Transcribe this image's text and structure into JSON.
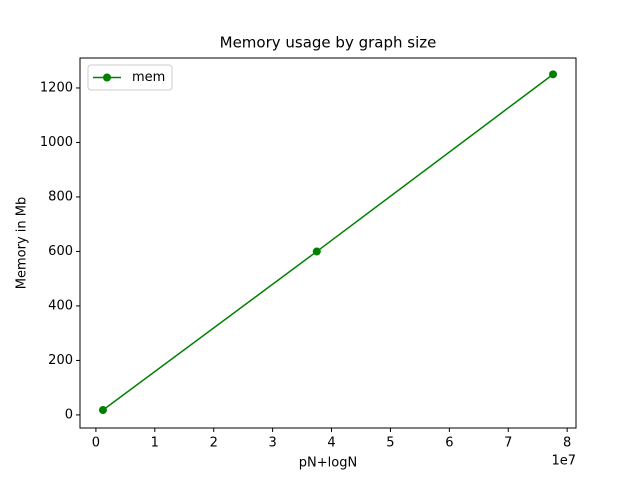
{
  "chart_data": {
    "type": "line",
    "title": "Memory usage by graph size",
    "x_label": "pN+logN",
    "y_label": "Memory in Mb",
    "x_offset_label": "1e7",
    "x": [
      1200000,
      37500000,
      77600000
    ],
    "series": [
      {
        "name": "mem",
        "color": "#008000",
        "values": [
          18,
          600,
          1250
        ]
      }
    ],
    "xlim": [
      -2700000,
      81500000
    ],
    "ylim": [
      -48,
      1310
    ],
    "xticks": [
      0,
      {
        "value": 10000000,
        "label": "1"
      },
      {
        "value": 20000000,
        "label": "2"
      },
      {
        "value": 30000000,
        "label": "3"
      },
      {
        "value": 40000000,
        "label": "4"
      },
      {
        "value": 50000000,
        "label": "5"
      },
      {
        "value": 60000000,
        "label": "6"
      },
      {
        "value": 70000000,
        "label": "7"
      },
      {
        "value": 80000000,
        "label": "8"
      }
    ],
    "yticks": [
      0,
      200,
      400,
      600,
      800,
      1000,
      1200
    ],
    "legend": "upper left",
    "grid": false
  }
}
